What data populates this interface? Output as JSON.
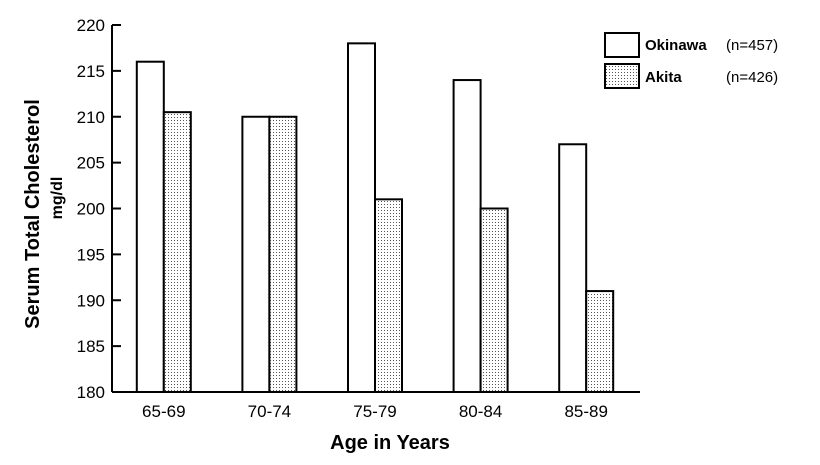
{
  "chart_data": {
    "type": "bar",
    "title": "",
    "categories": [
      "65-69",
      "70-74",
      "75-79",
      "80-84",
      "85-89"
    ],
    "series": [
      {
        "name": "Okinawa",
        "n_label": "(n=457)",
        "fill": "white",
        "values": [
          216,
          210,
          218,
          214,
          207
        ]
      },
      {
        "name": "Akita",
        "n_label": "(n=426)",
        "fill": "dotted",
        "values": [
          210.5,
          210,
          201,
          200,
          191
        ]
      }
    ],
    "xlabel": "Age in Years",
    "ylabel": "Serum Total Cholesterol",
    "ylabel_unit": "mg/dl",
    "ylim": [
      180,
      220
    ],
    "yticks": [
      180,
      185,
      190,
      195,
      200,
      205,
      210,
      215,
      220
    ],
    "grid": false,
    "legend_position": "top-right"
  }
}
